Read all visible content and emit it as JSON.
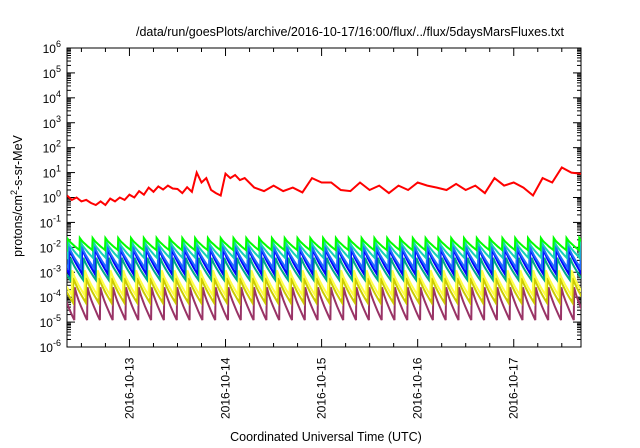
{
  "chart_data": {
    "type": "line",
    "title": "/data/run/goesPlots/archive/2016-10-17/16:00/flux/../flux/5daysMarsFluxes.txt",
    "xlabel": "Coordinated Universal Time (UTC)",
    "ylabel_parts": {
      "base": "protons/cm",
      "sup": "2",
      "rest": "-s-sr-MeV"
    },
    "y_scale": "log",
    "ylim": [
      1e-06,
      1000000.0
    ],
    "x_unit": "days since 2016-10-12 00:00 UTC",
    "xlim": [
      0.35,
      5.7
    ],
    "grid": false,
    "legend": "none",
    "x_ticks": [
      {
        "x": 1,
        "label": "2016-10-13"
      },
      {
        "x": 2,
        "label": "2016-10-14"
      },
      {
        "x": 3,
        "label": "2016-10-15"
      },
      {
        "x": 4,
        "label": "2016-10-16"
      },
      {
        "x": 5,
        "label": "2016-10-17"
      }
    ],
    "y_ticks": [
      {
        "exp": 6,
        "label": "10",
        "sup": "6"
      },
      {
        "exp": 5,
        "label": "10",
        "sup": "5"
      },
      {
        "exp": 4,
        "label": "10",
        "sup": "4"
      },
      {
        "exp": 3,
        "label": "10",
        "sup": "3"
      },
      {
        "exp": 2,
        "label": "10",
        "sup": "2"
      },
      {
        "exp": 1,
        "label": "10",
        "sup": "1"
      },
      {
        "exp": 0,
        "label": "10",
        "sup": "0"
      },
      {
        "exp": -1,
        "label": "10",
        "sup": "-1"
      },
      {
        "exp": -2,
        "label": "10",
        "sup": "-2"
      },
      {
        "exp": -3,
        "label": "10",
        "sup": "-3"
      },
      {
        "exp": -4,
        "label": "10",
        "sup": "-4"
      },
      {
        "exp": -5,
        "label": "10",
        "sup": "-5"
      },
      {
        "exp": -6,
        "label": "10",
        "sup": "-6"
      }
    ],
    "series": [
      {
        "color": "#ff0000",
        "x": [
          0.35,
          0.4,
          0.45,
          0.5,
          0.55,
          0.6,
          0.65,
          0.7,
          0.75,
          0.8,
          0.85,
          0.9,
          0.95,
          1.0,
          1.05,
          1.1,
          1.15,
          1.2,
          1.25,
          1.3,
          1.35,
          1.4,
          1.45,
          1.5,
          1.55,
          1.6,
          1.65,
          1.7,
          1.75,
          1.8,
          1.85,
          1.9,
          1.95,
          2.0,
          2.05,
          2.1,
          2.15,
          2.2,
          2.3,
          2.4,
          2.5,
          2.6,
          2.7,
          2.8,
          2.9,
          3.0,
          3.1,
          3.2,
          3.3,
          3.4,
          3.5,
          3.6,
          3.7,
          3.8,
          3.9,
          4.0,
          4.1,
          4.2,
          4.3,
          4.4,
          4.5,
          4.6,
          4.7,
          4.8,
          4.9,
          5.0,
          5.1,
          5.2,
          5.3,
          5.4,
          5.5,
          5.6,
          5.7
        ],
        "y": [
          1.2,
          0.8,
          1.0,
          0.7,
          0.8,
          0.6,
          0.5,
          0.7,
          0.5,
          0.9,
          0.7,
          1.0,
          0.8,
          1.3,
          1.0,
          1.8,
          1.3,
          2.5,
          1.7,
          2.8,
          2.1,
          3.0,
          2.3,
          2.2,
          1.5,
          2.6,
          1.7,
          10,
          4,
          6,
          2,
          1.5,
          1.2,
          9,
          6,
          8,
          5,
          6,
          2.5,
          1.8,
          3,
          1.8,
          2.5,
          1.6,
          6,
          4,
          4,
          2,
          1.8,
          4,
          2,
          3,
          1.5,
          3,
          2,
          4,
          3,
          2.5,
          2,
          3.5,
          2,
          3,
          1.5,
          6,
          3,
          4,
          2.5,
          1.2,
          6,
          4,
          16,
          10,
          9
        ]
      }
    ],
    "periodic_series": [
      {
        "color": "#00ff00",
        "phase": 0.0,
        "peak": 0.024,
        "trough": 0.0078,
        "trend_end": 1.0
      },
      {
        "color": "#16d3b4",
        "phase": 0.05,
        "peak": 0.017,
        "trough": 0.0038,
        "trend_end": 1.0
      },
      {
        "color": "#1e6cff",
        "phase": 0.12,
        "peak": 0.012,
        "trough": 0.0015,
        "trend_end": 1.0
      },
      {
        "color": "#0000ff",
        "phase": 0.18,
        "peak": 0.0095,
        "trough": 0.0009,
        "trend_end": 1.0
      },
      {
        "color": "#00aa88",
        "phase": 0.28,
        "peak": 0.0038,
        "trough": 0.0005,
        "trend_end": 1.0
      },
      {
        "color": "#ffff44",
        "phase": 0.4,
        "peak": 0.0012,
        "trough": 0.00012,
        "trend_end": 1.0
      },
      {
        "color": "#cccc00",
        "phase": 0.5,
        "peak": 0.0006,
        "trough": 6e-05,
        "trend_end": 1.0
      },
      {
        "color": "#993366",
        "phase": 0.6,
        "peak": 0.00025,
        "trough": 1.2e-05,
        "trend_end": 1.0
      }
    ],
    "periodic_cycle_days": 0.1333
  }
}
